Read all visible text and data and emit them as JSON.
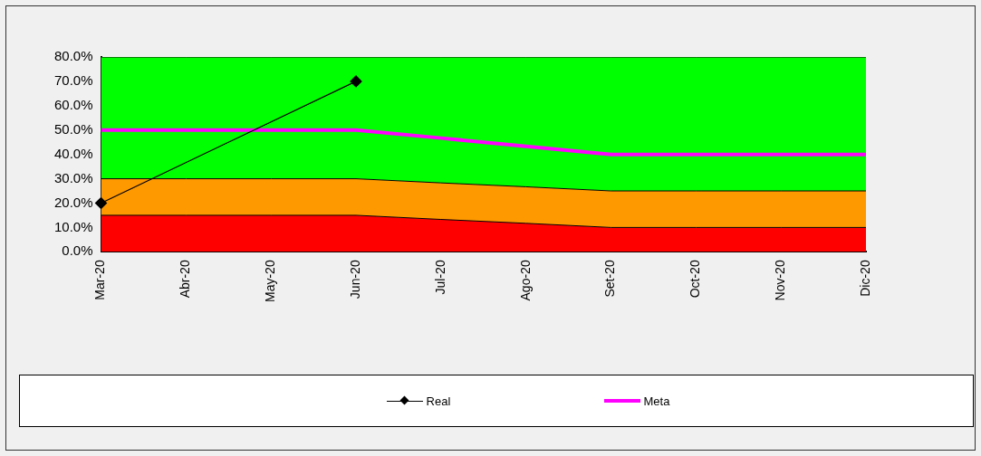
{
  "chart_data": {
    "type": "area",
    "categories": [
      "Mar-20",
      "Abr-20",
      "May-20",
      "Jun-20",
      "Jul-20",
      "Ago-20",
      "Set-20",
      "Oct-20",
      "Nov-20",
      "Dic-20"
    ],
    "stacked": true,
    "grid": false,
    "legend": "bottom",
    "ylim": [
      0,
      0.8
    ],
    "yticks": [
      {
        "value": 0,
        "label": "0.0%"
      },
      {
        "value": 0.1,
        "label": "10.0%"
      },
      {
        "value": 0.2,
        "label": "20.0%"
      },
      {
        "value": 0.3,
        "label": "30.0%"
      },
      {
        "value": 0.4,
        "label": "40.0%"
      },
      {
        "value": 0.5,
        "label": "50.0%"
      },
      {
        "value": 0.6,
        "label": "60.0%"
      },
      {
        "value": 0.7,
        "label": "70.0%"
      },
      {
        "value": 0.8,
        "label": "80.0%"
      }
    ],
    "series": [
      {
        "color": "#ff0000",
        "values": [
          0.15,
          0.15,
          0.15,
          0.15,
          0.133,
          0.117,
          0.1,
          0.1,
          0.1,
          0.1
        ]
      },
      {
        "color": "#ff9900",
        "values": [
          0.15,
          0.15,
          0.15,
          0.15,
          0.15,
          0.15,
          0.15,
          0.15,
          0.15,
          0.15
        ]
      },
      {
        "color": "#00ff00",
        "values": [
          0.5,
          0.5,
          0.5,
          0.5,
          0.517,
          0.533,
          0.55,
          0.55,
          0.55,
          0.55
        ]
      },
      {
        "type": "line",
        "name": "Real",
        "color": "#000000",
        "marker": "diamond",
        "values": [
          0.2,
          null,
          null,
          0.7,
          null,
          null,
          null,
          null,
          null,
          null
        ]
      },
      {
        "type": "line",
        "name": "Meta",
        "color": "#ff00ff",
        "marker": "none",
        "values": [
          0.5,
          0.5,
          0.5,
          0.5,
          0.467,
          0.433,
          0.4,
          0.4,
          0.4,
          0.4
        ]
      }
    ]
  }
}
